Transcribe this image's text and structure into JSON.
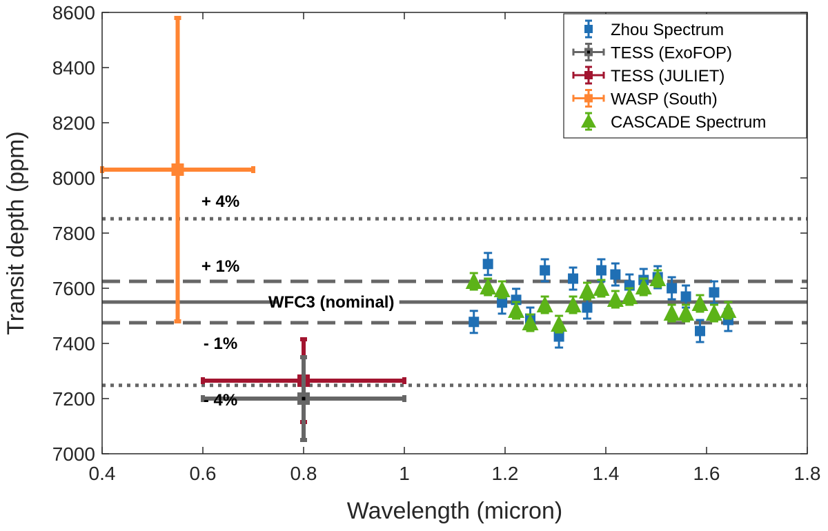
{
  "chart_data": {
    "type": "scatter",
    "xlabel": "Wavelength (micron)",
    "ylabel": "Transit depth (ppm)",
    "xlim": [
      0.4,
      1.8
    ],
    "ylim": [
      7000,
      8600
    ],
    "x_ticks": [
      0.4,
      0.6,
      0.8,
      1,
      1.2,
      1.4,
      1.6,
      1.8
    ],
    "y_ticks": [
      7000,
      7200,
      7400,
      7600,
      7800,
      8000,
      8200,
      8400,
      8600
    ],
    "x_tick_labels": [
      "0.4",
      "0.6",
      "0.8",
      "1",
      "1.2",
      "1.4",
      "1.6",
      "1.8"
    ],
    "y_tick_labels": [
      "7000",
      "7200",
      "7400",
      "7600",
      "7800",
      "8000",
      "8200",
      "8400",
      "8600"
    ],
    "legend_position": "top-right",
    "reference_lines": [
      {
        "name": "plus-4-percent",
        "y": 7852,
        "style": "dotted",
        "color": "#666666",
        "label": "+ 4%",
        "label_x": 0.635,
        "label_y": 7915
      },
      {
        "name": "plus-1-percent",
        "y": 7625,
        "style": "dashed",
        "color": "#666666",
        "label": "+ 1%",
        "label_x": 0.635,
        "label_y": 7680
      },
      {
        "name": "nominal",
        "y": 7550,
        "style": "solid",
        "color": "#666666",
        "label": "WFC3 (nominal)",
        "label_x": 0.855,
        "label_y": 7550
      },
      {
        "name": "minus-1-percent",
        "y": 7475,
        "style": "dashed",
        "color": "#666666",
        "label": "- 1%",
        "label_x": 0.635,
        "label_y": 7400
      },
      {
        "name": "minus-4-percent",
        "y": 7248,
        "style": "dotted",
        "color": "#666666",
        "label": "- 4%",
        "label_x": 0.635,
        "label_y": 7195
      }
    ],
    "series": [
      {
        "name": "Zhou Spectrum",
        "color": "#1f6fb4",
        "marker": "square",
        "points": [
          {
            "x": 1.138,
            "y": 7478,
            "yerr": 40
          },
          {
            "x": 1.166,
            "y": 7688,
            "yerr": 40
          },
          {
            "x": 1.194,
            "y": 7548,
            "yerr": 40
          },
          {
            "x": 1.222,
            "y": 7558,
            "yerr": 40
          },
          {
            "x": 1.25,
            "y": 7490,
            "yerr": 40
          },
          {
            "x": 1.279,
            "y": 7665,
            "yerr": 40
          },
          {
            "x": 1.307,
            "y": 7425,
            "yerr": 40
          },
          {
            "x": 1.335,
            "y": 7635,
            "yerr": 40
          },
          {
            "x": 1.363,
            "y": 7530,
            "yerr": 40
          },
          {
            "x": 1.391,
            "y": 7665,
            "yerr": 40
          },
          {
            "x": 1.419,
            "y": 7650,
            "yerr": 40
          },
          {
            "x": 1.447,
            "y": 7610,
            "yerr": 40
          },
          {
            "x": 1.475,
            "y": 7630,
            "yerr": 40
          },
          {
            "x": 1.503,
            "y": 7640,
            "yerr": 40
          },
          {
            "x": 1.531,
            "y": 7600,
            "yerr": 40
          },
          {
            "x": 1.559,
            "y": 7570,
            "yerr": 40
          },
          {
            "x": 1.587,
            "y": 7445,
            "yerr": 40
          },
          {
            "x": 1.615,
            "y": 7585,
            "yerr": 40
          },
          {
            "x": 1.643,
            "y": 7485,
            "yerr": 40
          }
        ]
      },
      {
        "name": "TESS (ExoFOP)",
        "color": "#666666",
        "marker": "square",
        "points": [
          {
            "x": 0.8,
            "y": 7200,
            "xerr": 0.2,
            "yerr": 150
          }
        ]
      },
      {
        "name": "TESS (JULIET)",
        "color": "#a2142f",
        "marker": "square",
        "points": [
          {
            "x": 0.8,
            "y": 7265,
            "xerr": 0.2,
            "yerr": 150
          }
        ]
      },
      {
        "name": "WASP (South)",
        "color": "#ff8533",
        "marker": "square",
        "points": [
          {
            "x": 0.55,
            "y": 8030,
            "xerr": 0.15,
            "yerr": 550
          }
        ]
      },
      {
        "name": "CASCADE Spectrum",
        "color": "#5cb318",
        "marker": "triangle",
        "points": [
          {
            "x": 1.138,
            "y": 7625,
            "yerr": 30
          },
          {
            "x": 1.166,
            "y": 7605,
            "yerr": 30
          },
          {
            "x": 1.194,
            "y": 7595,
            "yerr": 30
          },
          {
            "x": 1.222,
            "y": 7520,
            "yerr": 30
          },
          {
            "x": 1.25,
            "y": 7475,
            "yerr": 30
          },
          {
            "x": 1.279,
            "y": 7540,
            "yerr": 30
          },
          {
            "x": 1.307,
            "y": 7470,
            "yerr": 30
          },
          {
            "x": 1.335,
            "y": 7540,
            "yerr": 30
          },
          {
            "x": 1.363,
            "y": 7590,
            "yerr": 30
          },
          {
            "x": 1.391,
            "y": 7600,
            "yerr": 30
          },
          {
            "x": 1.419,
            "y": 7560,
            "yerr": 30
          },
          {
            "x": 1.447,
            "y": 7570,
            "yerr": 30
          },
          {
            "x": 1.475,
            "y": 7605,
            "yerr": 30
          },
          {
            "x": 1.503,
            "y": 7635,
            "yerr": 30
          },
          {
            "x": 1.531,
            "y": 7510,
            "yerr": 30
          },
          {
            "x": 1.559,
            "y": 7510,
            "yerr": 30
          },
          {
            "x": 1.587,
            "y": 7545,
            "yerr": 30
          },
          {
            "x": 1.615,
            "y": 7510,
            "yerr": 30
          },
          {
            "x": 1.643,
            "y": 7520,
            "yerr": 30
          }
        ]
      }
    ]
  }
}
